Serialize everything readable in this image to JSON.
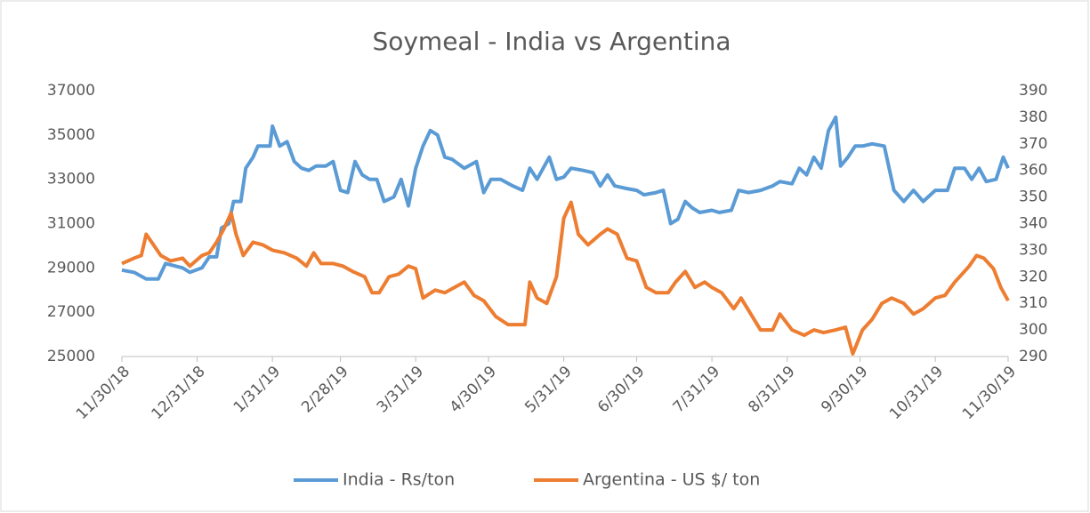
{
  "chart_data": {
    "type": "line",
    "title": "Soymeal - India vs Argentina",
    "xlim": [
      "11/30/18",
      "11/30/19"
    ],
    "xticks": [
      "11/30/18",
      "12/31/18",
      "1/31/19",
      "2/28/19",
      "3/31/19",
      "4/30/19",
      "5/31/19",
      "6/30/19",
      "7/31/19",
      "8/31/19",
      "9/30/19",
      "10/31/19",
      "11/30/19"
    ],
    "ylim": [
      25000,
      37000
    ],
    "yticks": [
      25000,
      27000,
      29000,
      31000,
      33000,
      35000,
      37000
    ],
    "y2lim": [
      290,
      390
    ],
    "y2ticks": [
      290,
      300,
      310,
      320,
      330,
      340,
      350,
      360,
      370,
      380,
      390
    ],
    "legend": "bottom",
    "series": [
      {
        "name": "India - Rs/ton",
        "color": "#5b9bd5",
        "x": [
          "11/30/18",
          "12/5/18",
          "12/10/18",
          "12/15/18",
          "12/18/18",
          "12/25/18",
          "12/28/18",
          "1/2/19",
          "1/5/19",
          "1/8/19",
          "1/10/19",
          "1/13/19",
          "1/15/19",
          "1/18/19",
          "1/20/19",
          "1/23/19",
          "1/25/19",
          "1/30/19",
          "1/31/19",
          "2/3/19",
          "2/6/19",
          "2/9/19",
          "2/12/19",
          "2/15/19",
          "2/18/19",
          "2/22/19",
          "2/25/19",
          "2/28/19",
          "3/3/19",
          "3/6/19",
          "3/9/19",
          "3/12/19",
          "3/15/19",
          "3/18/19",
          "3/22/19",
          "3/25/19",
          "3/28/19",
          "3/31/19",
          "4/3/19",
          "4/6/19",
          "4/9/19",
          "4/12/19",
          "4/15/19",
          "4/20/19",
          "4/25/19",
          "4/28/19",
          "5/1/19",
          "5/5/19",
          "5/10/19",
          "5/14/19",
          "5/17/19",
          "5/20/19",
          "5/25/19",
          "5/28/19",
          "5/31/19",
          "6/3/19",
          "6/8/19",
          "6/12/19",
          "6/15/19",
          "6/18/19",
          "6/21/19",
          "6/25/19",
          "6/30/19",
          "7/3/19",
          "7/8/19",
          "7/11/19",
          "7/14/19",
          "7/17/19",
          "7/20/19",
          "7/23/19",
          "7/26/19",
          "7/31/19",
          "8/3/19",
          "8/8/19",
          "8/11/19",
          "8/15/19",
          "8/20/19",
          "8/25/19",
          "8/28/19",
          "9/2/19",
          "9/5/19",
          "9/8/19",
          "9/11/19",
          "9/14/19",
          "9/17/19",
          "9/20/19",
          "9/22/19",
          "9/25/19",
          "9/28/19",
          "10/1/19",
          "10/5/19",
          "10/10/19",
          "10/14/19",
          "10/18/19",
          "10/22/19",
          "10/26/19",
          "10/31/19",
          "11/5/19",
          "11/8/19",
          "11/12/19",
          "11/15/19",
          "11/18/19",
          "11/21/19",
          "11/25/19",
          "11/28/19",
          "11/30/19"
        ],
        "values": [
          28900,
          28800,
          28500,
          28500,
          29200,
          29000,
          28800,
          29000,
          29500,
          29500,
          30800,
          31000,
          32000,
          32000,
          33500,
          34000,
          34500,
          34500,
          35400,
          34500,
          34700,
          33800,
          33500,
          33400,
          33600,
          33600,
          33800,
          32500,
          32400,
          33800,
          33200,
          33000,
          33000,
          32000,
          32200,
          33000,
          31800,
          33500,
          34500,
          35200,
          35000,
          34000,
          33900,
          33500,
          33800,
          32400,
          33000,
          33000,
          32700,
          32500,
          33500,
          33000,
          34000,
          33000,
          33100,
          33500,
          33400,
          33300,
          32700,
          33200,
          32700,
          32600,
          32500,
          32300,
          32400,
          32500,
          31000,
          31200,
          32000,
          31700,
          31500,
          31600,
          31500,
          31600,
          32500,
          32400,
          32500,
          32700,
          32900,
          32800,
          33500,
          33200,
          34000,
          33500,
          35200,
          35800,
          33600,
          34000,
          34500,
          34500,
          34600,
          34500,
          32500,
          32000,
          32500,
          32000,
          32500,
          32500,
          33500,
          33500,
          33000,
          33500,
          32900,
          33000,
          34000,
          33500
        ]
      },
      {
        "name": "Argentina - US $/ ton",
        "color": "#ed7d31",
        "axis": "y2",
        "x": [
          "11/30/18",
          "12/5/18",
          "12/8/18",
          "12/10/18",
          "12/13/18",
          "12/16/18",
          "12/20/18",
          "12/25/18",
          "12/28/18",
          "1/2/19",
          "1/5/19",
          "1/8/19",
          "1/11/19",
          "1/14/19",
          "1/16/19",
          "1/19/19",
          "1/23/19",
          "1/27/19",
          "1/31/19",
          "2/5/19",
          "2/10/19",
          "2/14/19",
          "2/17/19",
          "2/20/19",
          "2/25/19",
          "3/1/19",
          "3/5/19",
          "3/10/19",
          "3/13/19",
          "3/16/19",
          "3/20/19",
          "3/24/19",
          "3/28/19",
          "3/31/19",
          "4/3/19",
          "4/8/19",
          "4/12/19",
          "4/16/19",
          "4/20/19",
          "4/24/19",
          "4/28/19",
          "5/3/19",
          "5/8/19",
          "5/12/19",
          "5/15/19",
          "5/17/19",
          "5/20/19",
          "5/24/19",
          "5/28/19",
          "5/31/19",
          "6/3/19",
          "6/6/19",
          "6/10/19",
          "6/15/19",
          "6/18/19",
          "6/22/19",
          "6/26/19",
          "6/30/19",
          "7/4/19",
          "7/8/19",
          "7/13/19",
          "7/16/19",
          "7/20/19",
          "7/24/19",
          "7/28/19",
          "7/31/19",
          "8/4/19",
          "8/9/19",
          "8/12/19",
          "8/16/19",
          "8/20/19",
          "8/25/19",
          "8/28/19",
          "9/2/19",
          "9/7/19",
          "9/11/19",
          "9/15/19",
          "9/20/19",
          "9/24/19",
          "9/27/19",
          "10/1/19",
          "10/5/19",
          "10/9/19",
          "10/13/19",
          "10/18/19",
          "10/22/19",
          "10/26/19",
          "10/31/19",
          "11/4/19",
          "11/8/19",
          "11/11/19",
          "11/14/19",
          "11/17/19",
          "11/20/19",
          "11/24/19",
          "11/27/19",
          "11/30/19"
        ],
        "values": [
          325,
          327,
          328,
          336,
          332,
          328,
          326,
          327,
          324,
          328,
          329,
          333,
          338,
          344,
          336,
          328,
          333,
          332,
          330,
          329,
          327,
          324,
          329,
          325,
          325,
          324,
          322,
          320,
          314,
          314,
          320,
          321,
          324,
          323,
          312,
          315,
          314,
          316,
          318,
          313,
          311,
          305,
          302,
          302,
          302,
          318,
          312,
          310,
          320,
          342,
          348,
          336,
          332,
          336,
          338,
          336,
          327,
          326,
          316,
          314,
          314,
          318,
          322,
          316,
          318,
          316,
          314,
          308,
          312,
          306,
          300,
          300,
          306,
          300,
          298,
          300,
          299,
          300,
          301,
          291,
          300,
          304,
          310,
          312,
          310,
          306,
          308,
          312,
          313,
          318,
          321,
          324,
          328,
          327,
          323,
          316,
          311
        ]
      }
    ]
  }
}
